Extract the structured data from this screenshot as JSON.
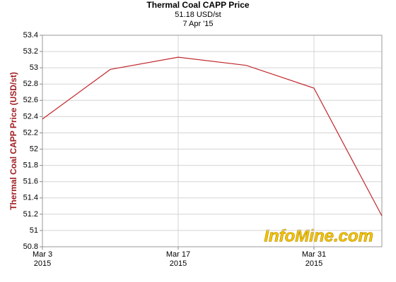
{
  "chart_data": {
    "type": "line",
    "title": "Thermal Coal CAPP Price",
    "subtitle": "51.18 USD/st",
    "date_label": "7 Apr '15",
    "ylabel": "Thermal Coal CAPP Price (USD/st)",
    "watermark": "InfoMine.com",
    "x": [
      "2015-03-03",
      "2015-03-10",
      "2015-03-17",
      "2015-03-24",
      "2015-03-31",
      "2015-04-07"
    ],
    "series": [
      {
        "name": "Thermal Coal CAPP Price",
        "color": "#c0282d",
        "values": [
          52.37,
          52.98,
          53.13,
          53.03,
          52.75,
          51.18
        ]
      }
    ],
    "xlim": [
      "2015-03-03",
      "2015-04-07"
    ],
    "xticks": [
      {
        "value": "2015-03-03",
        "label": "Mar 3\n2015"
      },
      {
        "value": "2015-03-17",
        "label": "Mar 17\n2015"
      },
      {
        "value": "2015-03-31",
        "label": "Mar 31\n2015"
      }
    ],
    "ylim": [
      50.8,
      53.4
    ],
    "yticks": [
      50.8,
      51,
      51.2,
      51.4,
      51.6,
      51.8,
      52,
      52.2,
      52.4,
      52.6,
      52.8,
      53,
      53.2,
      53.4
    ],
    "grid": true
  }
}
